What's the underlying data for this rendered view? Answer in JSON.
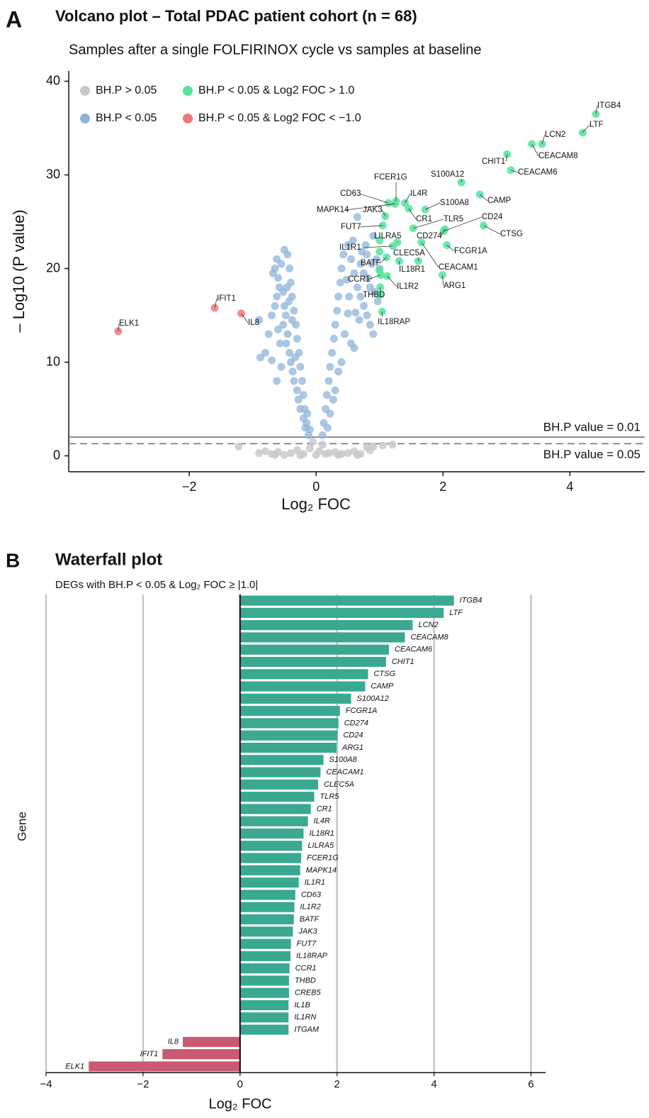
{
  "chart_data": [
    {
      "type": "scatter",
      "panel": "A",
      "title": "Volcano plot – Total PDAC patient cohort (n = 68)",
      "subtitle": "Samples after a single FOLFIRINOX cycle vs samples at baseline",
      "xlabel": "Log₂ FOC",
      "ylabel": "– Log10 (P value)",
      "xlim": [
        -3.9,
        5.18
      ],
      "ylim": [
        -1.7,
        41.1
      ],
      "xticks": [
        {
          "value": -2,
          "label": "−2"
        },
        0,
        2,
        4
      ],
      "yticks": [
        0,
        10,
        20,
        30,
        40
      ],
      "hlines": [
        {
          "value": 2,
          "label": "BH.P value = 0.01",
          "style": "solid"
        },
        {
          "value": 1.3,
          "label": "BH.P value = 0.05",
          "style": "dashed"
        }
      ],
      "series": [
        {
          "name": "BH.P > 0.05",
          "color": "#c9c9c9",
          "x": [
            -1.22,
            -0.9,
            -0.8,
            -0.7,
            -0.6,
            -0.5,
            -0.4,
            -0.3,
            -0.2,
            -0.1,
            0,
            0.05,
            0.1,
            0.2,
            0.3,
            0.4,
            0.5,
            0.6,
            0.7,
            0.8,
            0.9,
            1.05,
            1.2,
            -0.05,
            0.15,
            -0.25,
            0.35,
            0.65,
            -0.65,
            0.85
          ],
          "y": [
            1.0,
            0.3,
            0.5,
            0.2,
            0.4,
            0.1,
            0.3,
            0.6,
            0.2,
            0.8,
            0.1,
            0.5,
            1.2,
            0.3,
            0.4,
            0.2,
            0.3,
            0.5,
            0.2,
            0.9,
            1.0,
            1.1,
            1.2,
            1.5,
            0.2,
            0.05,
            0.1,
            0.1,
            0.1,
            0.6
          ]
        },
        {
          "name": "BH.P < 0.05",
          "color": "#8db4da",
          "x": [
            -0.12,
            -0.15,
            -0.18,
            -0.2,
            -0.22,
            -0.25,
            -0.27,
            -0.3,
            -0.32,
            -0.35,
            -0.38,
            -0.4,
            -0.42,
            -0.45,
            -0.5,
            -0.55,
            -0.6,
            -0.62,
            -0.65,
            -0.7,
            -0.75,
            -0.8,
            -0.88,
            -0.5,
            -0.48,
            -0.52,
            -0.45,
            -0.47,
            -0.42,
            -0.4,
            -0.55,
            -0.37,
            -0.35,
            -0.3,
            -0.28,
            -0.25,
            -0.2,
            -0.17,
            -0.6,
            -0.58,
            -0.65,
            -0.52,
            -0.43,
            -0.57,
            -0.62,
            -0.7,
            -0.33,
            -0.38,
            -0.46,
            -0.68,
            -0.9,
            -0.62,
            -0.1,
            -0.14,
            0.1,
            0.12,
            0.15,
            0.17,
            0.2,
            0.22,
            0.25,
            0.28,
            0.3,
            0.33,
            0.35,
            0.38,
            0.4,
            0.43,
            0.5,
            0.55,
            0.6,
            0.65,
            0.7,
            0.75,
            0.8,
            0.85,
            0.9,
            0.5,
            0.45,
            0.55,
            0.6,
            0.52,
            0.7,
            0.78,
            0.82,
            0.95,
            0.9,
            0.62,
            0.4,
            0.35,
            0.3,
            0.27,
            0.22,
            0.18,
            0.48,
            0.58,
            0.68,
            0.75,
            0.85,
            0.97,
            1.0,
            0.72,
            0.65,
            0.88,
            0.92,
            0.8
          ],
          "y": [
            2.2,
            3.5,
            5,
            6.5,
            8,
            9.5,
            11,
            12.5,
            14,
            15.5,
            17,
            18.5,
            20,
            21.5,
            22,
            20.5,
            19,
            17,
            16,
            15,
            13,
            11,
            10.5,
            16,
            15,
            14,
            13,
            12,
            11,
            10,
            9.5,
            9,
            8,
            7,
            6,
            5,
            4,
            3,
            13.5,
            18,
            20,
            17.5,
            16.5,
            12,
            8,
            10.2,
            10.5,
            14.5,
            18,
            19.5,
            14.5,
            21,
            2.8,
            4.5,
            2.2,
            3.5,
            5,
            6.5,
            8,
            9.5,
            11,
            12.5,
            14,
            15.5,
            17,
            18.5,
            20,
            21.5,
            22.5,
            21,
            19.5,
            18,
            17,
            16,
            15,
            14,
            13,
            15.2,
            13,
            12,
            11.5,
            17,
            20.5,
            22.5,
            19,
            21,
            23.5,
            15.3,
            10,
            9,
            7,
            6,
            4.5,
            3,
            18.8,
            23,
            14.5,
            19.5,
            18,
            16.5,
            20,
            21.8,
            25.5,
            20.5,
            17.5,
            21.5
          ]
        },
        {
          "name": "BH.P < 0.05 & Log2 FOC > 1.0",
          "color": "#55e39c",
          "x": [
            4.41,
            4.2,
            3.56,
            3.4,
            3.07,
            3.01,
            2.64,
            2.58,
            2.29,
            2.06,
            2.03,
            2.01,
            1.99,
            1.72,
            1.66,
            1.61,
            1.53,
            1.46,
            1.4,
            1.31,
            1.28,
            1.26,
            1.24,
            1.21,
            1.14,
            1.12,
            1.11,
            1.09,
            1.05,
            1.04,
            1.02,
            1.01,
            1.01,
            1.0,
            1.0,
            1.0
          ],
          "y": [
            36.5,
            34.5,
            33.3,
            33.3,
            30.5,
            32.2,
            24.6,
            27.9,
            29.2,
            22.5,
            24.2,
            24.0,
            19.3,
            26.3,
            22.8,
            20.8,
            24.3,
            26.4,
            27.0,
            20.8,
            22.8,
            27.2,
            26.9,
            22.4,
            27.0,
            19.2,
            21.2,
            25.6,
            24.6,
            15.4,
            19.3,
            18.0,
            17.2,
            21.8,
            19.8,
            23.0
          ],
          "labels": [
            "ITGB4",
            "LTF",
            "LCN2",
            "CEACAM8",
            "CEACAM6",
            "CHIT1",
            "CTSG",
            "CAMP",
            "S100A12",
            "FCGR1A",
            "CD274",
            "CD24",
            "ARG1",
            "S100A8",
            "CEACAM1",
            "CLEC5A",
            "TLR5",
            "CR1",
            "IL4R",
            "IL18R1",
            "LILRA5",
            "FCER1G",
            "MAPK14",
            "IL1R1",
            "CD63",
            "IL1R2",
            "BATF",
            "JAK3",
            "FUT7",
            "IL18RAP",
            "CCR1",
            "THBD",
            null,
            null,
            null,
            null
          ]
        },
        {
          "name": "BH.P < 0.05 & Log2 FOC < −1.0",
          "color": "#f07878",
          "x": [
            -3.12,
            -1.6,
            -1.18
          ],
          "y": [
            13.3,
            15.8,
            15.2
          ],
          "labels": [
            "ELK1",
            "IFIT1",
            "IL8"
          ]
        }
      ]
    },
    {
      "type": "hbar",
      "panel": "B",
      "title": "Waterfall plot",
      "subtitle": "DEGs with BH.P < 0.05 & Log₂ FOC ≥ |1.0|",
      "xlabel": "Log₂ FOC",
      "ylabel": "Gene",
      "xlim": [
        -4,
        6.3
      ],
      "xticks": [
        {
          "value": -4,
          "label": "−4"
        },
        {
          "value": -2,
          "label": "−2"
        },
        0,
        2,
        4,
        6
      ],
      "color_positive": "#3aa892",
      "color_negative": "#c95a72",
      "categories": [
        "ITGB4",
        "LTF",
        "LCN2",
        "CEACAM8",
        "CEACAM6",
        "CHIT1",
        "CTSG",
        "CAMP",
        "S100A12",
        "FCGR1A",
        "CD274",
        "CD24",
        "ARG1",
        "S100A8",
        "CEACAM1",
        "CLEC5A",
        "TLR5",
        "CR1",
        "IL4R",
        "IL18R1",
        "LILRA5",
        "FCER1G",
        "MAPK14",
        "IL1R1",
        "CD63",
        "IL1R2",
        "BATF",
        "JAK3",
        "FUT7",
        "IL18RAP",
        "CCR1",
        "THBD",
        "CREB5",
        "IL1B",
        "IL1RN",
        "ITGAM",
        "IL8",
        "IFIT1",
        "ELK1"
      ],
      "values": [
        4.41,
        4.2,
        3.56,
        3.4,
        3.07,
        3.01,
        2.64,
        2.58,
        2.29,
        2.06,
        2.03,
        2.01,
        1.99,
        1.72,
        1.66,
        1.61,
        1.53,
        1.46,
        1.4,
        1.31,
        1.28,
        1.26,
        1.24,
        1.21,
        1.14,
        1.12,
        1.11,
        1.09,
        1.05,
        1.04,
        1.02,
        1.01,
        1.01,
        1.0,
        1.0,
        1.0,
        -1.18,
        -1.6,
        -3.12
      ]
    }
  ]
}
